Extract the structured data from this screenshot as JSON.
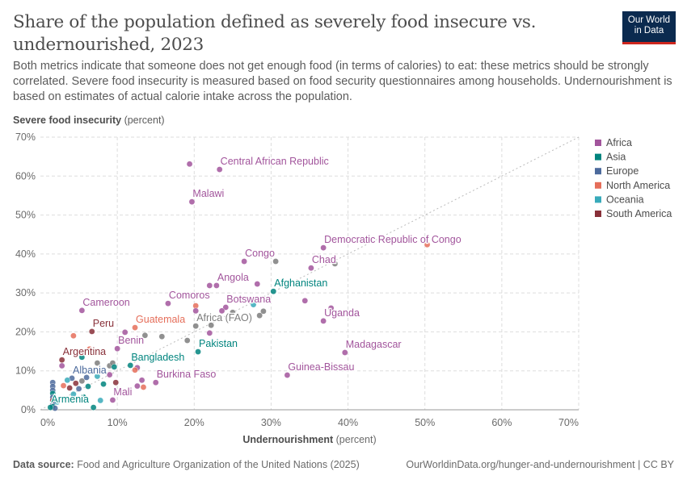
{
  "title": "Share of the population defined as severely food insecure vs. undernourished, 2023",
  "subtitle": "Both metrics indicate that someone does not get enough food (in terms of calories) to eat: these metrics should be strongly correlated. Severe food insecurity is measured based on food security questionnaires among households. Undernourishment is based on estimates of actual calorie intake across the population.",
  "logo": {
    "line1": "Our World",
    "line2": "in Data"
  },
  "footer": {
    "source_label": "Data source:",
    "source": "Food and Agriculture Organization of the United Nations (2025)",
    "link": "OurWorldinData.org/hunger-and-undernourishment | CC BY"
  },
  "chart_data": {
    "type": "scatter",
    "title": "Share of the population defined as severely food insecure vs. undernourished, 2023",
    "xlabel": "Undernourishment",
    "xlabel_unit": "(percent)",
    "ylabel": "Severe food insecurity",
    "ylabel_unit": "(percent)",
    "xlim": [
      0,
      70
    ],
    "ylim": [
      0,
      70
    ],
    "xticks": [
      "0%",
      "10%",
      "20%",
      "30%",
      "40%",
      "50%",
      "60%",
      "70%"
    ],
    "yticks": [
      "0%",
      "10%",
      "20%",
      "30%",
      "40%",
      "50%",
      "60%",
      "70%"
    ],
    "grid": true,
    "diagonal": true,
    "legend_position": "right",
    "legend": [
      "Africa",
      "Asia",
      "Europe",
      "North America",
      "Oceania",
      "South America"
    ],
    "colors": {
      "Africa": "#a2559c",
      "Asia": "#00847e",
      "Europe": "#4c6a9c",
      "North America": "#e56e5a",
      "Oceania": "#38aaba",
      "South America": "#883039",
      "Aggregate": "#7d7d7d"
    },
    "points": [
      {
        "x": 23.3,
        "y": 61.7,
        "r": "Africa",
        "label": "Central African Republic"
      },
      {
        "x": 19.4,
        "y": 63.1,
        "r": "Africa"
      },
      {
        "x": 19.7,
        "y": 53.4,
        "r": "Africa",
        "label": "Malawi"
      },
      {
        "x": 36.8,
        "y": 41.6,
        "r": "Africa",
        "label": "Democratic Republic of Congo"
      },
      {
        "x": 50.3,
        "y": 42.4,
        "r": "North America"
      },
      {
        "x": 26.5,
        "y": 38.1,
        "r": "Africa",
        "label": "Congo"
      },
      {
        "x": 30.6,
        "y": 38.1,
        "r": "Aggregate"
      },
      {
        "x": 35.2,
        "y": 36.4,
        "r": "Africa",
        "label": "Chad"
      },
      {
        "x": 38.3,
        "y": 37.5,
        "r": "Aggregate"
      },
      {
        "x": 22.9,
        "y": 31.9,
        "r": "Africa",
        "label": "Angola"
      },
      {
        "x": 22.0,
        "y": 31.9,
        "r": "Africa"
      },
      {
        "x": 28.2,
        "y": 32.3,
        "r": "Africa"
      },
      {
        "x": 30.3,
        "y": 30.4,
        "r": "Asia",
        "label": "Afghanistan"
      },
      {
        "x": 16.6,
        "y": 27.3,
        "r": "Africa",
        "label": "Comoros"
      },
      {
        "x": 5.4,
        "y": 25.5,
        "r": "Africa",
        "label": "Cameroon"
      },
      {
        "x": 34.4,
        "y": 28.0,
        "r": "Africa"
      },
      {
        "x": 36.8,
        "y": 22.8,
        "r": "Africa",
        "label": "Uganda"
      },
      {
        "x": 37.8,
        "y": 26.1,
        "r": "Africa"
      },
      {
        "x": 24.1,
        "y": 26.3,
        "r": "Africa",
        "label": "Botswana"
      },
      {
        "x": 23.6,
        "y": 25.4,
        "r": "Africa"
      },
      {
        "x": 27.7,
        "y": 27.0,
        "r": "Oceania"
      },
      {
        "x": 29.0,
        "y": 25.3,
        "r": "Aggregate"
      },
      {
        "x": 28.5,
        "y": 24.2,
        "r": "Aggregate"
      },
      {
        "x": 25.0,
        "y": 25.0,
        "r": "Aggregate"
      },
      {
        "x": 20.2,
        "y": 26.7,
        "r": "North America"
      },
      {
        "x": 20.2,
        "y": 25.4,
        "r": "Africa"
      },
      {
        "x": 20.2,
        "y": 21.5,
        "r": "Aggregate",
        "label": "Africa (FAO)"
      },
      {
        "x": 22.2,
        "y": 21.7,
        "r": "Aggregate"
      },
      {
        "x": 22.0,
        "y": 19.7,
        "r": "Africa"
      },
      {
        "x": 12.3,
        "y": 21.1,
        "r": "North America",
        "label": "Guatemala"
      },
      {
        "x": 6.7,
        "y": 20.1,
        "r": "South America",
        "label": "Peru"
      },
      {
        "x": 4.3,
        "y": 19.0,
        "r": "North America"
      },
      {
        "x": 11.0,
        "y": 19.9,
        "r": "Africa"
      },
      {
        "x": 10.0,
        "y": 15.7,
        "r": "Africa",
        "label": "Benin"
      },
      {
        "x": 13.6,
        "y": 19.1,
        "r": "Aggregate"
      },
      {
        "x": 15.8,
        "y": 18.8,
        "r": "Aggregate"
      },
      {
        "x": 19.1,
        "y": 17.8,
        "r": "Aggregate"
      },
      {
        "x": 6.4,
        "y": 15.6,
        "r": "North America"
      },
      {
        "x": 20.5,
        "y": 14.9,
        "r": "Asia",
        "label": "Pakistan"
      },
      {
        "x": 39.6,
        "y": 14.7,
        "r": "Africa",
        "label": "Madagascar"
      },
      {
        "x": 32.1,
        "y": 8.9,
        "r": "Africa",
        "label": "Guinea-Bissau"
      },
      {
        "x": 11.7,
        "y": 11.4,
        "r": "Asia",
        "label": "Bangladesh"
      },
      {
        "x": 12.6,
        "y": 10.8,
        "r": "Africa"
      },
      {
        "x": 12.3,
        "y": 10.2,
        "r": "North America"
      },
      {
        "x": 15.0,
        "y": 7.0,
        "r": "Africa",
        "label": "Burkina Faso"
      },
      {
        "x": 13.2,
        "y": 7.6,
        "r": "Africa"
      },
      {
        "x": 13.4,
        "y": 5.8,
        "r": "North America"
      },
      {
        "x": 12.6,
        "y": 6.1,
        "r": "Africa"
      },
      {
        "x": 9.4,
        "y": 2.5,
        "r": "Africa",
        "label": "Mali"
      },
      {
        "x": 2.8,
        "y": 12.8,
        "r": "South America",
        "label": "Argentina"
      },
      {
        "x": 2.8,
        "y": 11.3,
        "r": "Africa"
      },
      {
        "x": 5.4,
        "y": 13.5,
        "r": "Asia"
      },
      {
        "x": 4.1,
        "y": 8.1,
        "r": "Europe",
        "label": "Albania"
      },
      {
        "x": 7.4,
        "y": 12.0,
        "r": "Aggregate"
      },
      {
        "x": 9.0,
        "y": 11.3,
        "r": "Aggregate"
      },
      {
        "x": 9.4,
        "y": 12.0,
        "r": "Aggregate"
      },
      {
        "x": 9.6,
        "y": 11.0,
        "r": "Asia"
      },
      {
        "x": 9.0,
        "y": 9.0,
        "r": "Africa"
      },
      {
        "x": 9.8,
        "y": 7.0,
        "r": "South America"
      },
      {
        "x": 7.4,
        "y": 8.6,
        "r": "Oceania"
      },
      {
        "x": 8.2,
        "y": 6.6,
        "r": "Asia"
      },
      {
        "x": 6.0,
        "y": 8.3,
        "r": "Europe"
      },
      {
        "x": 5.4,
        "y": 7.4,
        "r": "Aggregate"
      },
      {
        "x": 3.5,
        "y": 7.6,
        "r": "Oceania"
      },
      {
        "x": 3.0,
        "y": 6.2,
        "r": "North America"
      },
      {
        "x": 3.8,
        "y": 5.6,
        "r": "South America"
      },
      {
        "x": 4.6,
        "y": 6.8,
        "r": "South America"
      },
      {
        "x": 5.0,
        "y": 5.4,
        "r": "Europe"
      },
      {
        "x": 6.2,
        "y": 6.0,
        "r": "Asia"
      },
      {
        "x": 4.3,
        "y": 4.0,
        "r": "Oceania"
      },
      {
        "x": 5.6,
        "y": 3.3,
        "r": "Asia"
      },
      {
        "x": 7.8,
        "y": 2.4,
        "r": "Oceania"
      },
      {
        "x": 6.9,
        "y": 0.6,
        "r": "Asia"
      },
      {
        "x": 1.6,
        "y": 7.0,
        "r": "Europe"
      },
      {
        "x": 1.6,
        "y": 6.0,
        "r": "Europe"
      },
      {
        "x": 1.6,
        "y": 5.0,
        "r": "Europe"
      },
      {
        "x": 1.6,
        "y": 4.2,
        "r": "Asia"
      },
      {
        "x": 1.6,
        "y": 3.2,
        "r": "Europe"
      },
      {
        "x": 1.6,
        "y": 2.4,
        "r": "South America"
      },
      {
        "x": 1.6,
        "y": 1.6,
        "r": "Europe"
      },
      {
        "x": 1.6,
        "y": 0.8,
        "r": "Asia"
      },
      {
        "x": 1.9,
        "y": 0.4,
        "r": "Europe"
      },
      {
        "x": 2.2,
        "y": 2.0,
        "r": "Oceania"
      },
      {
        "x": 1.3,
        "y": 0.6,
        "r": "Asia",
        "label": "Armenia"
      }
    ]
  }
}
